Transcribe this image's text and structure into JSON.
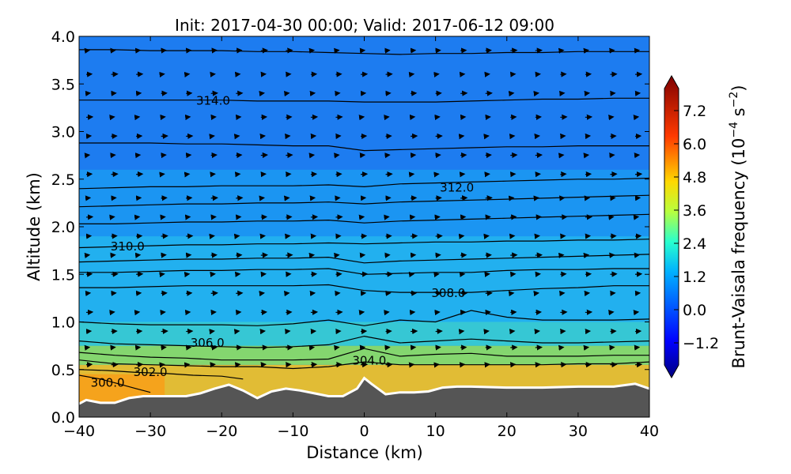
{
  "chart_data": {
    "type": "heatmap",
    "title": "Init: 2017-04-30 00:00; Valid: 2017-06-12 09:00",
    "xlabel": "Distance (km)",
    "ylabel": "Altitude (km)",
    "xlim": [
      -40,
      40
    ],
    "ylim": [
      0.0,
      4.0
    ],
    "xticks": [
      -40,
      -30,
      -20,
      -10,
      0,
      10,
      20,
      30,
      40
    ],
    "xtick_labels": [
      "−40",
      "−30",
      "−20",
      "−10",
      "0",
      "10",
      "20",
      "30",
      "40"
    ],
    "yticks": [
      0.0,
      0.5,
      1.0,
      1.5,
      2.0,
      2.5,
      3.0,
      3.5,
      4.0
    ],
    "ytick_labels": [
      "0.0",
      "0.5",
      "1.0",
      "1.5",
      "2.0",
      "2.5",
      "3.0",
      "3.5",
      "4.0"
    ],
    "colorbar": {
      "label_main": "Brunt-Vaisala frequency (10",
      "label_exp1": "−4",
      "label_mid": " s",
      "label_exp2": "−2",
      "label_end": ")",
      "range": [
        -2.0,
        8.0
      ],
      "ticks": [
        -1.2,
        0.0,
        1.2,
        2.4,
        3.6,
        4.8,
        6.0,
        7.2
      ],
      "tick_labels": [
        "−1.2",
        "0.0",
        "1.2",
        "2.4",
        "3.6",
        "4.8",
        "6.0",
        "7.2"
      ],
      "extend": "both"
    },
    "terrain": {
      "x": [
        -40,
        -39,
        -37,
        -35,
        -33,
        -31,
        -29,
        -27,
        -25,
        -23,
        -21,
        -19,
        -17,
        -15,
        -13,
        -11,
        -9,
        -7,
        -5,
        -3,
        -1,
        0,
        1,
        3,
        5,
        7,
        9,
        11,
        13,
        15,
        20,
        25,
        30,
        35,
        38,
        40
      ],
      "y": [
        0.14,
        0.18,
        0.15,
        0.15,
        0.2,
        0.22,
        0.22,
        0.22,
        0.22,
        0.25,
        0.3,
        0.34,
        0.28,
        0.2,
        0.27,
        0.3,
        0.28,
        0.25,
        0.22,
        0.22,
        0.3,
        0.41,
        0.35,
        0.24,
        0.26,
        0.26,
        0.27,
        0.31,
        0.32,
        0.32,
        0.31,
        0.31,
        0.32,
        0.32,
        0.35,
        0.3
      ],
      "color": "#555555"
    },
    "contours": [
      {
        "level": "300.0",
        "x": [
          -40,
          -37,
          -35,
          -32,
          -30
        ],
        "y": [
          0.44,
          0.4,
          0.36,
          0.3,
          0.26
        ],
        "label_x": -36,
        "label_y": 0.37
      },
      {
        "level": "302.0",
        "x": [
          -40,
          -36,
          -32,
          -28,
          -24,
          -20,
          -17
        ],
        "y": [
          0.5,
          0.49,
          0.47,
          0.46,
          0.44,
          0.43,
          0.4
        ],
        "label_x": -30,
        "label_y": 0.48
      },
      {
        "level": "304.0",
        "x": [
          -40,
          -35,
          -30,
          -25,
          -20,
          -15,
          -10,
          -5,
          0,
          5,
          10,
          15,
          20,
          25,
          30,
          35,
          40
        ],
        "y": [
          0.6,
          0.56,
          0.55,
          0.54,
          0.53,
          0.53,
          0.51,
          0.53,
          0.58,
          0.55,
          0.55,
          0.55,
          0.55,
          0.55,
          0.56,
          0.56,
          0.58
        ],
        "label_x": 0.7,
        "label_y": 0.6
      },
      {
        "level": "",
        "x": [
          -40,
          -35,
          -30,
          -25,
          -20,
          -15,
          -10,
          -5,
          0,
          5,
          10,
          15,
          20,
          25,
          30,
          35,
          40
        ],
        "y": [
          0.68,
          0.65,
          0.63,
          0.62,
          0.6,
          0.6,
          0.6,
          0.61,
          0.72,
          0.64,
          0.66,
          0.67,
          0.64,
          0.64,
          0.64,
          0.65,
          0.65
        ]
      },
      {
        "level": "306.0",
        "x": [
          -40,
          -35,
          -30,
          -25,
          -20,
          -15,
          -10,
          -5,
          0,
          5,
          10,
          15,
          20,
          25,
          30,
          35,
          40
        ],
        "y": [
          0.8,
          0.77,
          0.76,
          0.75,
          0.74,
          0.73,
          0.74,
          0.76,
          0.85,
          0.78,
          0.8,
          0.82,
          0.8,
          0.78,
          0.78,
          0.79,
          0.8
        ],
        "label_x": -22,
        "label_y": 0.79
      },
      {
        "level": "",
        "x": [
          -40,
          -35,
          -30,
          -25,
          -20,
          -15,
          -10,
          -5,
          0,
          5,
          10,
          15,
          20,
          25,
          30,
          35,
          40
        ],
        "y": [
          1.0,
          0.98,
          0.97,
          0.97,
          0.97,
          0.96,
          0.98,
          1.02,
          0.96,
          1.02,
          1.0,
          1.12,
          1.05,
          1.02,
          1.02,
          1.02,
          1.03
        ]
      },
      {
        "level": "308.0",
        "x": [
          -40,
          -35,
          -30,
          -25,
          -20,
          -15,
          -10,
          -5,
          0,
          5,
          10,
          15,
          20,
          25,
          30,
          35,
          40
        ],
        "y": [
          1.36,
          1.36,
          1.37,
          1.38,
          1.38,
          1.38,
          1.38,
          1.39,
          1.33,
          1.31,
          1.31,
          1.31,
          1.33,
          1.35,
          1.36,
          1.38,
          1.38
        ],
        "label_x": 11.8,
        "label_y": 1.31
      },
      {
        "level": "",
        "x": [
          -40,
          -35,
          -30,
          -25,
          -20,
          -15,
          -10,
          -5,
          0,
          5,
          10,
          15,
          20,
          25,
          30,
          35,
          40
        ],
        "y": [
          1.52,
          1.52,
          1.53,
          1.54,
          1.54,
          1.55,
          1.55,
          1.56,
          1.5,
          1.51,
          1.52,
          1.52,
          1.54,
          1.55,
          1.55,
          1.56,
          1.56
        ]
      },
      {
        "level": "",
        "x": [
          -40,
          -35,
          -30,
          -25,
          -20,
          -15,
          -10,
          -5,
          0,
          5,
          10,
          15,
          20,
          25,
          30,
          35,
          40
        ],
        "y": [
          1.63,
          1.64,
          1.65,
          1.66,
          1.66,
          1.67,
          1.67,
          1.68,
          1.62,
          1.64,
          1.65,
          1.66,
          1.67,
          1.68,
          1.69,
          1.7,
          1.71
        ]
      },
      {
        "level": "310.0",
        "x": [
          -40,
          -35,
          -30,
          -25,
          -20,
          -15,
          -10,
          -5,
          0,
          5,
          10,
          15,
          20,
          25,
          30,
          35,
          40
        ],
        "y": [
          1.78,
          1.79,
          1.8,
          1.81,
          1.81,
          1.82,
          1.82,
          1.83,
          1.82,
          1.83,
          1.84,
          1.84,
          1.85,
          1.85,
          1.86,
          1.86,
          1.87
        ],
        "label_x": -33.2,
        "label_y": 1.8
      },
      {
        "level": "",
        "x": [
          -40,
          -35,
          -30,
          -25,
          -20,
          -15,
          -10,
          -5,
          0,
          5,
          10,
          15,
          20,
          25,
          30,
          35,
          40
        ],
        "y": [
          2.03,
          2.03,
          2.04,
          2.05,
          2.05,
          2.06,
          2.06,
          2.07,
          2.04,
          2.06,
          2.07,
          2.08,
          2.09,
          2.1,
          2.11,
          2.12,
          2.13
        ]
      },
      {
        "level": "",
        "x": [
          -40,
          -35,
          -30,
          -25,
          -20,
          -15,
          -10,
          -5,
          0,
          5,
          10,
          15,
          20,
          25,
          30,
          35,
          40
        ],
        "y": [
          2.21,
          2.22,
          2.23,
          2.24,
          2.24,
          2.25,
          2.25,
          2.26,
          2.24,
          2.26,
          2.27,
          2.28,
          2.29,
          2.3,
          2.31,
          2.32,
          2.33
        ]
      },
      {
        "level": "312.0",
        "x": [
          -40,
          -35,
          -30,
          -25,
          -20,
          -15,
          -10,
          -5,
          0,
          5,
          10,
          15,
          20,
          25,
          30,
          35,
          40
        ],
        "y": [
          2.4,
          2.41,
          2.42,
          2.42,
          2.43,
          2.43,
          2.43,
          2.44,
          2.42,
          2.45,
          2.46,
          2.47,
          2.48,
          2.49,
          2.5,
          2.5,
          2.51
        ],
        "label_x": 13.0,
        "label_y": 2.42
      },
      {
        "level": "",
        "x": [
          -40,
          -35,
          -30,
          -25,
          -20,
          -15,
          -10,
          -5,
          0,
          5,
          10,
          15,
          20,
          25,
          30,
          35,
          40
        ],
        "y": [
          2.88,
          2.88,
          2.88,
          2.87,
          2.87,
          2.86,
          2.85,
          2.85,
          2.8,
          2.81,
          2.82,
          2.83,
          2.84,
          2.84,
          2.85,
          2.85,
          2.85
        ]
      },
      {
        "level": "314.0",
        "x": [
          -40,
          -35,
          -30,
          -25,
          -20,
          -15,
          -10,
          -5,
          0,
          5,
          10,
          15,
          20,
          25,
          30,
          35,
          40
        ],
        "y": [
          3.33,
          3.33,
          3.33,
          3.33,
          3.33,
          3.32,
          3.32,
          3.32,
          3.31,
          3.31,
          3.31,
          3.32,
          3.33,
          3.34,
          3.34,
          3.35,
          3.35
        ],
        "label_x": -21.2,
        "label_y": 3.33
      },
      {
        "level": "",
        "x": [
          -40,
          -35,
          -30,
          -25,
          -20,
          -15,
          -10,
          -5,
          0,
          5,
          10,
          15,
          20,
          25,
          30,
          35,
          40
        ],
        "y": [
          3.86,
          3.86,
          3.85,
          3.85,
          3.85,
          3.84,
          3.84,
          3.83,
          3.82,
          3.81,
          3.82,
          3.82,
          3.83,
          3.83,
          3.84,
          3.84,
          3.84
        ]
      }
    ],
    "wind_vectors": {
      "x_spacing_km": 3.5,
      "y_levels_km": [
        0.55,
        0.73,
        0.9,
        1.1,
        1.3,
        1.5,
        1.7,
        1.9,
        2.1,
        2.3,
        2.55,
        2.75,
        2.95,
        3.15,
        3.4,
        3.6,
        3.85
      ]
    }
  }
}
